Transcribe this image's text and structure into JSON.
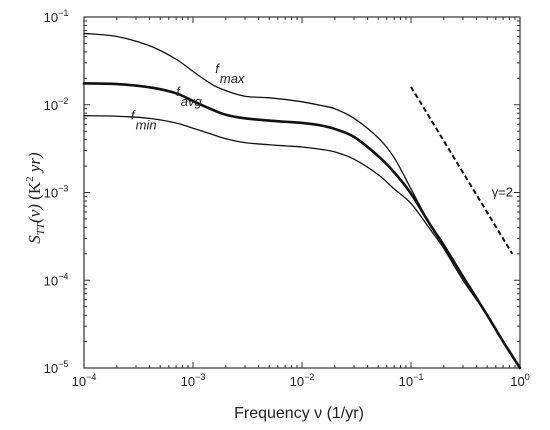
{
  "chart_data": {
    "type": "line",
    "x_scale": "log",
    "y_scale": "log",
    "xlim": [
      0.0001,
      1
    ],
    "ylim": [
      1e-05,
      0.1
    ],
    "grid": false,
    "xlabel": "Frequency ν (1/yr)",
    "ylabel": {
      "symbol": "S",
      "subscript": "TT",
      "arg": "(ν)",
      "units_open": " (K",
      "units_power": "2",
      "units_close": " yr)"
    },
    "x_ticks": [
      {
        "value": 0.0001,
        "base": "10",
        "exp": "−4"
      },
      {
        "value": 0.001,
        "base": "10",
        "exp": "−3"
      },
      {
        "value": 0.01,
        "base": "10",
        "exp": "−2"
      },
      {
        "value": 0.1,
        "base": "10",
        "exp": "−1"
      },
      {
        "value": 1,
        "base": "10",
        "exp": "0"
      }
    ],
    "y_ticks": [
      {
        "value": 1e-05,
        "base": "10",
        "exp": "−5"
      },
      {
        "value": 0.0001,
        "base": "10",
        "exp": "−4"
      },
      {
        "value": 0.001,
        "base": "10",
        "exp": "−3"
      },
      {
        "value": 0.01,
        "base": "10",
        "exp": "−2"
      },
      {
        "value": 0.1,
        "base": "10",
        "exp": "−1"
      }
    ],
    "series": [
      {
        "label_base": "f",
        "label_sub": "max",
        "label_at": [
          0.0016,
          0.023
        ],
        "stroke_width": 1.3,
        "x": [
          0.0001,
          0.0002,
          0.0004,
          0.0007,
          0.001,
          0.0015,
          0.002,
          0.003,
          0.005,
          0.007,
          0.01,
          0.015,
          0.02,
          0.03,
          0.05,
          0.07,
          0.1,
          0.15,
          0.2,
          0.3,
          0.5,
          0.7,
          1.0
        ],
        "y": [
          0.065,
          0.06,
          0.047,
          0.033,
          0.024,
          0.017,
          0.0145,
          0.0125,
          0.012,
          0.0115,
          0.0108,
          0.0098,
          0.009,
          0.007,
          0.0042,
          0.0025,
          0.0011,
          0.00043,
          0.00025,
          0.00011,
          4e-05,
          2e-05,
          1e-05
        ]
      },
      {
        "label_base": "f",
        "label_sub": "avg",
        "label_at": [
          0.0007,
          0.0125
        ],
        "stroke_width": 2.6,
        "x": [
          0.0001,
          0.0002,
          0.0004,
          0.0007,
          0.001,
          0.0015,
          0.002,
          0.003,
          0.005,
          0.007,
          0.01,
          0.015,
          0.02,
          0.03,
          0.05,
          0.07,
          0.1,
          0.15,
          0.2,
          0.3,
          0.5,
          0.7,
          1.0
        ],
        "y": [
          0.0175,
          0.0172,
          0.0158,
          0.0135,
          0.011,
          0.0088,
          0.0077,
          0.007,
          0.0066,
          0.0064,
          0.0062,
          0.0058,
          0.0053,
          0.0043,
          0.0026,
          0.0017,
          0.00097,
          0.00043,
          0.00025,
          0.00011,
          4e-05,
          2e-05,
          1e-05
        ]
      },
      {
        "label_base": "f",
        "label_sub": "min",
        "label_at": [
          0.00027,
          0.0068
        ],
        "stroke_width": 1.3,
        "x": [
          0.0001,
          0.0002,
          0.0004,
          0.0007,
          0.001,
          0.0015,
          0.002,
          0.003,
          0.005,
          0.007,
          0.01,
          0.015,
          0.02,
          0.03,
          0.05,
          0.07,
          0.1,
          0.15,
          0.2,
          0.3,
          0.5,
          0.7,
          1.0
        ],
        "y": [
          0.0075,
          0.0074,
          0.007,
          0.0062,
          0.0054,
          0.0046,
          0.0041,
          0.0037,
          0.0035,
          0.0034,
          0.0033,
          0.0031,
          0.0029,
          0.0024,
          0.0016,
          0.0011,
          0.00075,
          0.00038,
          0.00023,
          0.0001,
          4e-05,
          2e-05,
          1e-05
        ]
      }
    ],
    "reference_line": {
      "label": "γ=2",
      "label_at": [
        0.55,
        0.0009
      ],
      "style": "dashed",
      "x": [
        0.1,
        0.85
      ],
      "y": [
        0.016,
        0.0002
      ]
    }
  }
}
